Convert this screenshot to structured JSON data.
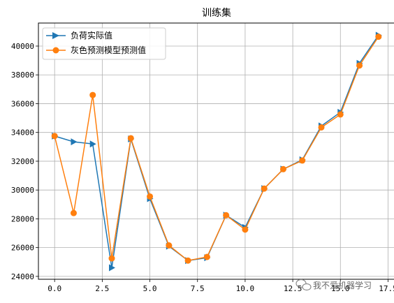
{
  "chart_data": {
    "type": "line",
    "title": "训练集",
    "x": [
      0,
      1,
      2,
      3,
      4,
      5,
      6,
      7,
      8,
      9,
      10,
      11,
      12,
      13,
      14,
      15,
      16,
      17
    ],
    "xlim": [
      -0.85,
      17.85
    ],
    "ylim": [
      23800,
      41600
    ],
    "xticks": [
      0,
      2.5,
      5,
      7.5,
      10,
      12.5,
      15,
      17.5
    ],
    "xtick_labels": [
      "0.0",
      "2.5",
      "5.0",
      "7.5",
      "10.0",
      "12.5",
      "15.0",
      "17.5"
    ],
    "yticks": [
      24000,
      26000,
      28000,
      30000,
      32000,
      34000,
      36000,
      38000,
      40000
    ],
    "ytick_labels": [
      "24000",
      "26000",
      "28000",
      "30000",
      "32000",
      "34000",
      "36000",
      "38000",
      "40000"
    ],
    "grid": true,
    "legend_position": "upper-left",
    "series": [
      {
        "name": "负荷实际值",
        "color": "#1f77b4",
        "marker": "triangle-right",
        "values": [
          33750,
          33350,
          33200,
          24600,
          33550,
          29400,
          26100,
          25100,
          25300,
          28250,
          27400,
          30100,
          31450,
          32100,
          34450,
          35400,
          38800,
          40750
        ]
      },
      {
        "name": "灰色预测模型预测值",
        "color": "#ff7f0e",
        "marker": "circle",
        "values": [
          33750,
          28400,
          36600,
          25250,
          33600,
          29550,
          26150,
          25100,
          25350,
          28250,
          27250,
          30100,
          31450,
          32050,
          34350,
          35250,
          38650,
          40650
        ]
      }
    ]
  },
  "watermark": {
    "text": "我不爱机器学习",
    "icon": "wechat-icon"
  }
}
